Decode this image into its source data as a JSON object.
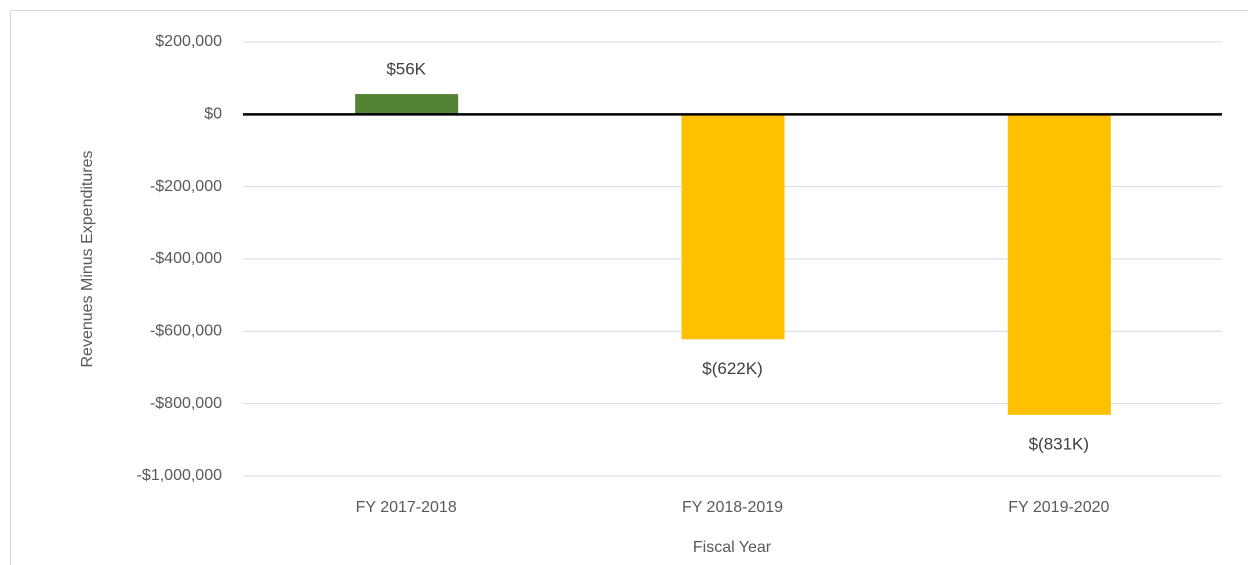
{
  "chart_data": {
    "type": "bar",
    "x_label": "Fiscal Year",
    "y_label": "Revenues Minus Expenditures",
    "categories": [
      "FY 2017-2018",
      "FY 2018-2019",
      "FY 2019-2020"
    ],
    "values": [
      56000,
      -622000,
      -831000
    ],
    "value_labels": [
      "$56K",
      "$(622K)",
      "$(831K)"
    ],
    "colors": [
      "#548235",
      "#ffc000",
      "#ffc000"
    ],
    "ylim": [
      -1000000,
      200000
    ],
    "yticks": [
      {
        "value": -1000000,
        "label": "-$1,000,000"
      },
      {
        "value": -800000,
        "label": "-$800,000"
      },
      {
        "value": -600000,
        "label": "-$600,000"
      },
      {
        "value": -400000,
        "label": "-$400,000"
      },
      {
        "value": -200000,
        "label": "-$200,000"
      },
      {
        "value": 0,
        "label": "$0"
      },
      {
        "value": 200000,
        "label": "$200,000"
      }
    ],
    "grid": true
  }
}
